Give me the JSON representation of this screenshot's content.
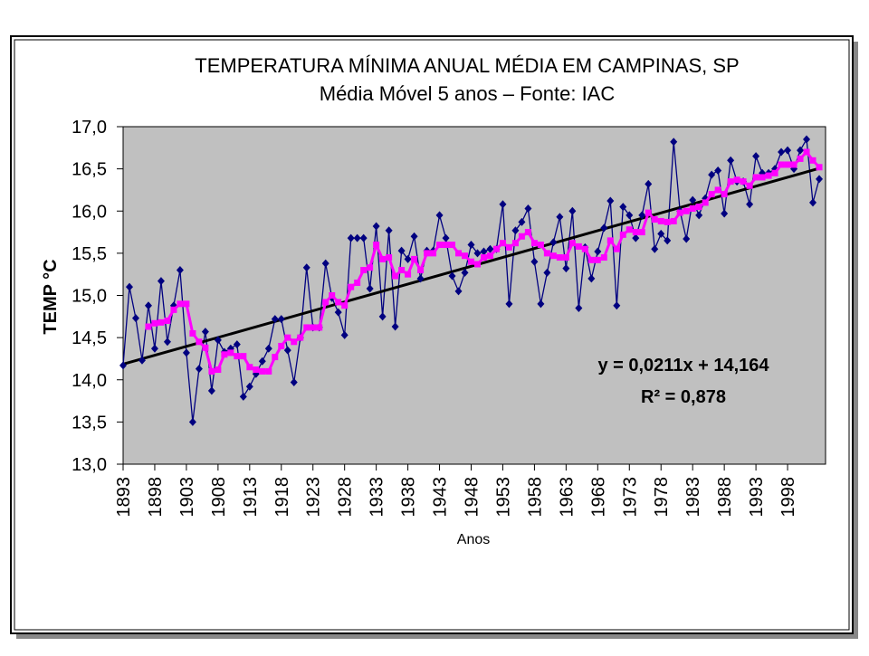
{
  "chart_data": {
    "type": "line",
    "title": "TEMPERATURA MÍNIMA ANUAL MÉDIA EM CAMPINAS, SP",
    "subtitle": "Média Móvel 5 anos – Fonte: IAC",
    "y_label": "TEMP °C",
    "x_label": "Anos",
    "x": [
      1893,
      1894,
      1895,
      1896,
      1897,
      1898,
      1899,
      1900,
      1901,
      1902,
      1903,
      1904,
      1905,
      1906,
      1907,
      1908,
      1909,
      1910,
      1911,
      1912,
      1913,
      1914,
      1915,
      1916,
      1917,
      1918,
      1919,
      1920,
      1921,
      1922,
      1923,
      1924,
      1925,
      1926,
      1927,
      1928,
      1929,
      1930,
      1931,
      1932,
      1933,
      1934,
      1935,
      1936,
      1937,
      1938,
      1939,
      1940,
      1941,
      1942,
      1943,
      1944,
      1945,
      1946,
      1947,
      1948,
      1949,
      1950,
      1951,
      1952,
      1953,
      1954,
      1955,
      1956,
      1957,
      1958,
      1959,
      1960,
      1961,
      1962,
      1963,
      1964,
      1965,
      1966,
      1967,
      1968,
      1969,
      1970,
      1971,
      1972,
      1973,
      1974,
      1975,
      1976,
      1977,
      1978,
      1979,
      1980,
      1981,
      1982,
      1983,
      1984,
      1985,
      1986,
      1987,
      1988,
      1989,
      1990,
      1991,
      1992,
      1993,
      1994,
      1995,
      1996,
      1997,
      1998,
      1999,
      2000,
      2001,
      2002,
      2003
    ],
    "series": [
      {
        "color": "#000080",
        "marker": "diamond",
        "values": [
          14.17,
          15.1,
          14.73,
          14.23,
          14.88,
          14.37,
          15.17,
          14.45,
          14.88,
          15.3,
          14.32,
          13.5,
          14.13,
          14.57,
          13.87,
          14.47,
          14.33,
          14.37,
          14.42,
          13.8,
          13.92,
          14.07,
          14.22,
          14.37,
          14.72,
          14.72,
          14.35,
          13.97,
          14.5,
          15.33,
          14.62,
          14.62,
          15.38,
          14.97,
          14.8,
          14.53,
          15.68,
          15.68,
          15.68,
          15.08,
          15.82,
          14.75,
          15.77,
          14.63,
          15.53,
          15.43,
          15.7,
          15.2,
          15.53,
          15.53,
          15.95,
          15.68,
          15.23,
          15.05,
          15.27,
          15.6,
          15.5,
          15.52,
          15.55,
          15.55,
          16.08,
          14.9,
          15.77,
          15.87,
          16.03,
          15.4,
          14.9,
          15.27,
          15.63,
          15.93,
          15.32,
          16.0,
          14.85,
          15.57,
          15.2,
          15.52,
          15.8,
          16.12,
          14.88,
          16.05,
          15.95,
          15.68,
          15.95,
          16.32,
          15.55,
          15.73,
          15.65,
          16.82,
          16.0,
          15.67,
          16.13,
          15.95,
          16.15,
          16.43,
          16.48,
          15.97,
          16.6,
          16.35,
          16.35,
          16.08,
          16.65,
          16.45,
          16.45,
          16.5,
          16.7,
          16.72,
          16.5,
          16.72,
          16.85,
          16.1,
          16.38
        ]
      },
      {
        "color": "#ff00ff",
        "marker": "square",
        "values": [
          null,
          null,
          null,
          null,
          14.63,
          14.67,
          14.68,
          14.7,
          14.83,
          14.9,
          14.9,
          14.55,
          14.45,
          14.38,
          14.1,
          14.12,
          14.3,
          14.32,
          14.28,
          14.28,
          14.15,
          14.12,
          14.1,
          14.1,
          14.27,
          14.4,
          14.5,
          14.45,
          14.5,
          14.62,
          14.62,
          14.62,
          14.92,
          15.0,
          14.92,
          14.88,
          15.1,
          15.15,
          15.3,
          15.33,
          15.6,
          15.43,
          15.45,
          15.23,
          15.3,
          15.25,
          15.43,
          15.3,
          15.5,
          15.5,
          15.6,
          15.6,
          15.6,
          15.5,
          15.47,
          15.4,
          15.37,
          15.45,
          15.47,
          15.55,
          15.62,
          15.57,
          15.62,
          15.7,
          15.75,
          15.62,
          15.6,
          15.5,
          15.47,
          15.45,
          15.45,
          15.62,
          15.58,
          15.55,
          15.42,
          15.42,
          15.45,
          15.65,
          15.55,
          15.72,
          15.78,
          15.75,
          15.75,
          15.98,
          15.9,
          15.88,
          15.87,
          15.88,
          15.98,
          16.0,
          16.03,
          16.05,
          16.1,
          16.2,
          16.25,
          16.2,
          16.35,
          16.37,
          16.35,
          16.3,
          16.4,
          16.4,
          16.42,
          16.45,
          16.55,
          16.55,
          16.55,
          16.62,
          16.7,
          16.6,
          16.52
        ]
      }
    ],
    "trendline": {
      "slope": 0.0211,
      "intercept": 14.164,
      "color": "#000000",
      "equation": "y = 0,0211x + 14,164",
      "r2_label": "R² = 0,878"
    },
    "xlim": [
      1893,
      2004
    ],
    "xticks": [
      1893,
      1898,
      1903,
      1908,
      1913,
      1918,
      1923,
      1928,
      1933,
      1938,
      1943,
      1948,
      1953,
      1958,
      1963,
      1968,
      1973,
      1978,
      1983,
      1988,
      1993,
      1998
    ],
    "ylim": [
      13,
      17
    ],
    "yticks": [
      {
        "value": 13,
        "label": "13,0"
      },
      {
        "value": 13.5,
        "label": "13,5"
      },
      {
        "value": 14,
        "label": "14,0"
      },
      {
        "value": 14.5,
        "label": "14,5"
      },
      {
        "value": 15,
        "label": "15,0"
      },
      {
        "value": 15.5,
        "label": "15,5"
      },
      {
        "value": 16,
        "label": "16,0"
      },
      {
        "value": 16.5,
        "label": "16,5"
      },
      {
        "value": 17,
        "label": "17,0"
      }
    ],
    "grid": false,
    "plot_background": "#c0c0c0"
  }
}
